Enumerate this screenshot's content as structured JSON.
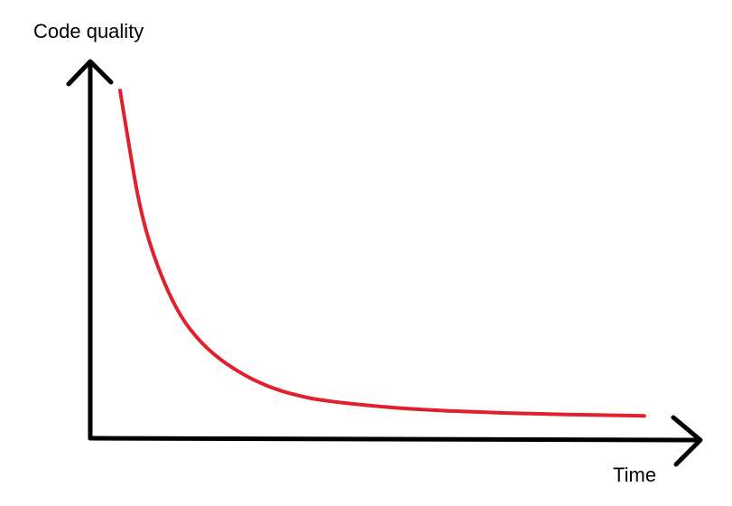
{
  "chart_data": {
    "type": "line",
    "title": "",
    "xlabel": "Time",
    "ylabel": "Code quality",
    "grid": false,
    "legend": "none",
    "xlim": [
      0,
      10
    ],
    "ylim": [
      0,
      10
    ],
    "series": [
      {
        "color": "#e0202c",
        "x": [
          0.5,
          0.6,
          0.8,
          1,
          1.3,
          1.6,
          2,
          2.5,
          3,
          3.5,
          4,
          5,
          6,
          7,
          8,
          9,
          9.3
        ],
        "values": [
          9.5,
          8.5,
          6.6,
          5.3,
          4.0,
          3.1,
          2.35,
          1.75,
          1.35,
          1.1,
          0.95,
          0.78,
          0.68,
          0.62,
          0.58,
          0.55,
          0.54
        ]
      }
    ]
  },
  "colors": {
    "axis": "#000000",
    "curve": "#e0202c",
    "background": "#ffffff"
  }
}
